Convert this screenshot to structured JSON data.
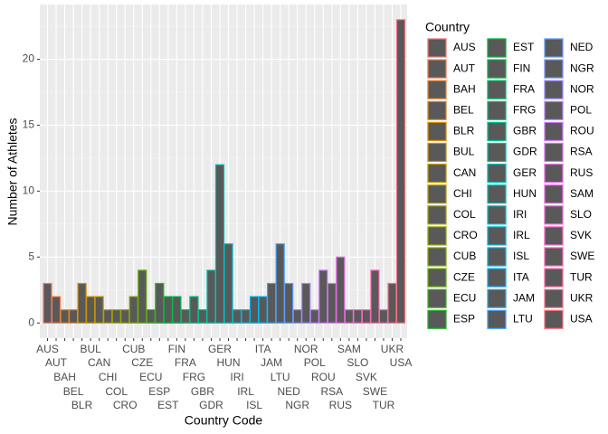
{
  "chart_data": {
    "type": "bar",
    "x_label": "Country Code",
    "y_label": "Number of Athletes",
    "legend_title": "Country",
    "categories": [
      "AUS",
      "AUT",
      "BAH",
      "BEL",
      "BLR",
      "BUL",
      "CAN",
      "CHI",
      "COL",
      "CRO",
      "CUB",
      "CZE",
      "ECU",
      "ESP",
      "EST",
      "FIN",
      "FRA",
      "FRG",
      "GBR",
      "GDR",
      "GER",
      "HUN",
      "IRI",
      "IRL",
      "ISL",
      "ITA",
      "JAM",
      "LTU",
      "NED",
      "NGR",
      "NOR",
      "POL",
      "ROU",
      "RSA",
      "RUS",
      "SAM",
      "SLO",
      "SVK",
      "SWE",
      "TUR",
      "UKR",
      "USA"
    ],
    "values": [
      3,
      2,
      1,
      1,
      3,
      2,
      2,
      1,
      1,
      1,
      2,
      4,
      1,
      3,
      2,
      2,
      1,
      2,
      1,
      4,
      12,
      6,
      1,
      1,
      2,
      2,
      3,
      6,
      3,
      1,
      3,
      1,
      4,
      3,
      5,
      1,
      1,
      1,
      4,
      1,
      3,
      23
    ],
    "fill": "#595959",
    "colors": [
      "#F8766D",
      "#F07C4D",
      "#E9832F",
      "#E2890F",
      "#D98F00",
      "#CD9400",
      "#C29A00",
      "#B79F00",
      "#A6A300",
      "#95A700",
      "#84AB00",
      "#6BB008",
      "#47B318",
      "#24B728",
      "#00BA38",
      "#00BC50",
      "#00BD67",
      "#00BF7F",
      "#00C093",
      "#00C0A4",
      "#00BFB4",
      "#00BFC4",
      "#00BCD1",
      "#00B9DD",
      "#00B6EA",
      "#0EB1F2",
      "#2AAAF6",
      "#45A3FB",
      "#619CFF",
      "#7E93FF",
      "#9B8AFF",
      "#B881FF",
      "#CE79FB",
      "#DB72F3",
      "#E86BEB",
      "#F564E3",
      "#F864D4",
      "#FB64C6",
      "#FE64B8",
      "#FE67A7",
      "#FC6C93",
      "#FA7180"
    ],
    "ylim": [
      -1.15,
      24.15
    ],
    "yticks": [
      0,
      5,
      10,
      15,
      20
    ],
    "minor_yticks": [
      2.5,
      7.5,
      12.5,
      17.5,
      22.5
    ],
    "grid": true,
    "legend_position": "right"
  }
}
